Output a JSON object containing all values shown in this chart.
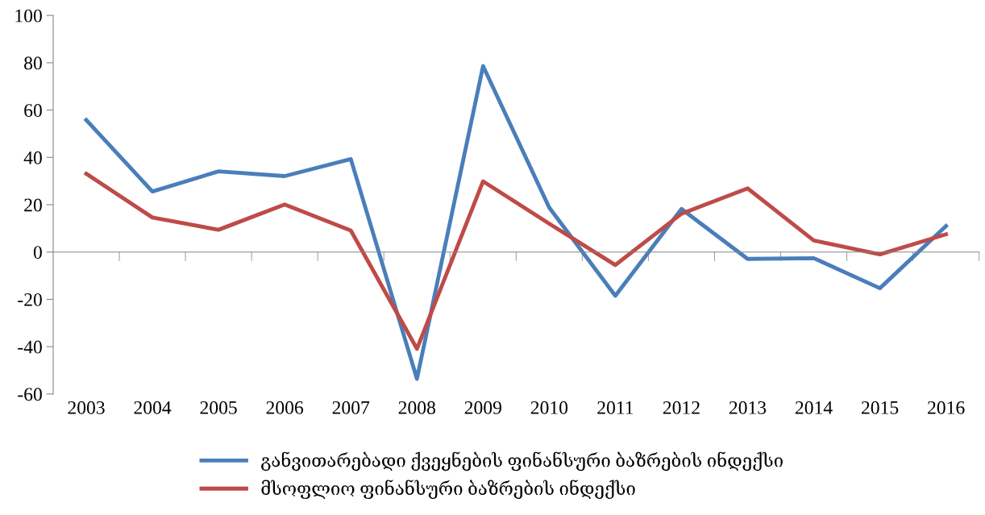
{
  "chart_data": {
    "type": "line",
    "categories": [
      "2003",
      "2004",
      "2005",
      "2006",
      "2007",
      "2008",
      "2009",
      "2010",
      "2011",
      "2012",
      "2013",
      "2014",
      "2015",
      "2016"
    ],
    "series": [
      {
        "name": "განვითარებადი ქვეყნების ფინანსური ბაზრების ინდექსი",
        "color": "#4a7ebb",
        "values": [
          55.8,
          25.6,
          34.1,
          32.1,
          39.3,
          -53.6,
          78.6,
          18.8,
          -18.5,
          18.2,
          -2.9,
          -2.6,
          -15.3,
          11.0
        ]
      },
      {
        "name": "მსოფლიო ფინანსური ბაზრების ინდექსი",
        "color": "#be4b48",
        "values": [
          33.1,
          14.6,
          9.4,
          20.1,
          9.1,
          -40.9,
          29.9,
          12.0,
          -5.5,
          16.2,
          26.9,
          4.9,
          -1.0,
          7.5
        ]
      }
    ],
    "ylim": [
      -60,
      100
    ],
    "yticks": [
      -60,
      -40,
      -20,
      0,
      20,
      40,
      60,
      80,
      100
    ],
    "legend": "bottom",
    "marker": "none",
    "line_style": "solid"
  }
}
